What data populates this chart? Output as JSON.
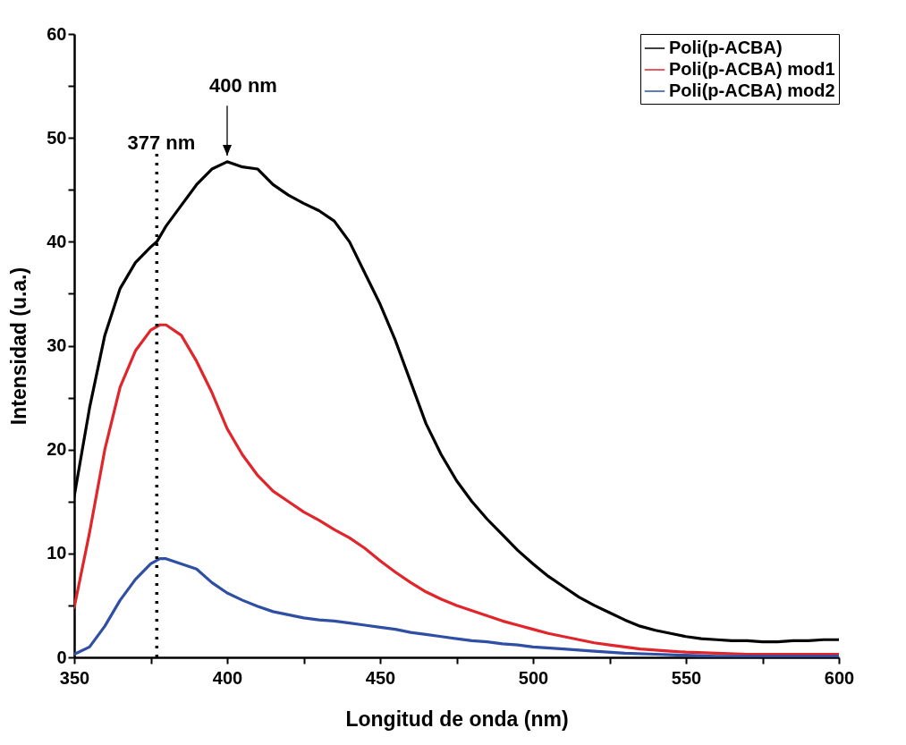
{
  "chart_data": {
    "type": "line",
    "xlabel": "Longitud de onda (nm)",
    "ylabel": "Intensidad (u.a.)",
    "xlim": [
      350,
      600
    ],
    "ylim": [
      0,
      60
    ],
    "xticks": [
      350,
      {
        "value": 375,
        "label": null
      },
      400,
      {
        "value": 425,
        "label": null
      },
      450,
      {
        "value": 475,
        "label": null
      },
      500,
      {
        "value": 525,
        "label": null
      },
      550,
      {
        "value": 575,
        "label": null
      },
      600
    ],
    "yticks": [
      0,
      {
        "value": 5,
        "label": null
      },
      10,
      {
        "value": 15,
        "label": null
      },
      20,
      {
        "value": 25,
        "label": null
      },
      30,
      {
        "value": 35,
        "label": null
      },
      40,
      {
        "value": 45,
        "label": null
      },
      50,
      {
        "value": 55,
        "label": null
      },
      60
    ],
    "legend": "top right",
    "line_style": "solid",
    "series": [
      {
        "name": "Poli(p-ACBA)",
        "color": "#000000",
        "x": [
          350,
          355,
          360,
          365,
          370,
          375,
          377,
          380,
          385,
          390,
          395,
          400,
          405,
          410,
          415,
          420,
          425,
          430,
          435,
          440,
          445,
          450,
          455,
          460,
          465,
          470,
          475,
          480,
          485,
          490,
          495,
          500,
          505,
          510,
          515,
          520,
          525,
          530,
          535,
          540,
          545,
          550,
          555,
          560,
          565,
          570,
          575,
          580,
          585,
          590,
          595,
          600
        ],
        "values": [
          15.5,
          24,
          31,
          35.5,
          38,
          39.5,
          40,
          41.5,
          43.5,
          45.5,
          47,
          47.7,
          47.2,
          47,
          45.5,
          44.5,
          43.7,
          43,
          42,
          40,
          37,
          34,
          30.5,
          26.5,
          22.5,
          19.5,
          17,
          15,
          13.3,
          11.8,
          10.3,
          9,
          7.8,
          6.8,
          5.8,
          5,
          4.3,
          3.6,
          3,
          2.6,
          2.3,
          2,
          1.8,
          1.7,
          1.6,
          1.6,
          1.5,
          1.5,
          1.6,
          1.6,
          1.7,
          1.7
        ]
      },
      {
        "name": "Poli(p-ACBA) mod1",
        "color": "#e0252b",
        "x": [
          350,
          355,
          360,
          365,
          370,
          375,
          378,
          380,
          385,
          390,
          395,
          400,
          405,
          410,
          415,
          420,
          425,
          430,
          435,
          440,
          445,
          450,
          455,
          460,
          465,
          470,
          475,
          480,
          485,
          490,
          495,
          500,
          505,
          510,
          515,
          520,
          525,
          530,
          535,
          540,
          545,
          550,
          560,
          570,
          580,
          590,
          600
        ],
        "values": [
          4.8,
          12,
          20,
          26,
          29.5,
          31.5,
          32,
          32,
          31,
          28.5,
          25.5,
          22,
          19.5,
          17.5,
          16,
          15,
          14,
          13.2,
          12.3,
          11.5,
          10.5,
          9.3,
          8.2,
          7.2,
          6.3,
          5.6,
          5,
          4.5,
          4,
          3.5,
          3.1,
          2.7,
          2.3,
          2,
          1.7,
          1.4,
          1.2,
          1,
          0.8,
          0.7,
          0.6,
          0.5,
          0.4,
          0.3,
          0.3,
          0.3,
          0.3
        ]
      },
      {
        "name": "Poli(p-ACBA) mod2",
        "color": "#2e4fa3",
        "x": [
          350,
          355,
          360,
          365,
          370,
          375,
          378,
          380,
          385,
          390,
          395,
          400,
          405,
          410,
          415,
          420,
          425,
          430,
          435,
          440,
          445,
          450,
          455,
          460,
          465,
          470,
          475,
          480,
          485,
          490,
          495,
          500,
          510,
          520,
          530,
          540,
          550,
          560,
          580,
          600
        ],
        "values": [
          0.3,
          1,
          3,
          5.5,
          7.5,
          9,
          9.5,
          9.5,
          9,
          8.5,
          7.2,
          6.2,
          5.5,
          4.9,
          4.4,
          4.1,
          3.8,
          3.6,
          3.5,
          3.3,
          3.1,
          2.9,
          2.7,
          2.4,
          2.2,
          2,
          1.8,
          1.6,
          1.5,
          1.3,
          1.2,
          1,
          0.8,
          0.6,
          0.4,
          0.3,
          0.2,
          0.1,
          0.1,
          0.1
        ]
      }
    ],
    "ref_lines": [
      {
        "axis": "x",
        "value": 377,
        "label": "377 nm",
        "line_style": "dotted",
        "color": "#000000"
      }
    ],
    "annotations": [
      {
        "text": "400 nm",
        "x": 400,
        "y": 47.7
      }
    ]
  }
}
